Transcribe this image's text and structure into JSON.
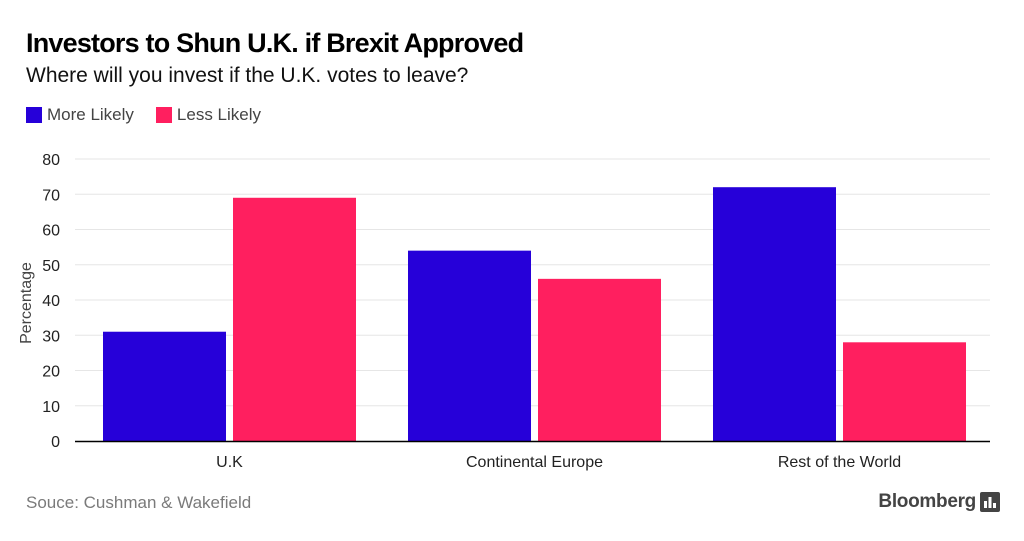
{
  "colors": {
    "more_likely": "#2600d9",
    "less_likely": "#ff1f5f",
    "grid": "#e6e6e6",
    "axis": "#000000",
    "text": "#222222"
  },
  "source": "Souce: Cushman & Wakefield",
  "brand": {
    "name": "Bloomberg",
    "icon": "bar-chart-icon"
  },
  "chart_data": {
    "type": "bar",
    "title": "Investors to Shun U.K. if Brexit Approved",
    "subtitle": "Where will you invest if the U.K. votes to leave?",
    "categories": [
      "U.K",
      "Continental Europe",
      "Rest of the World"
    ],
    "series": [
      {
        "name": "More Likely",
        "color": "#2600d9",
        "values": [
          31,
          54,
          72
        ]
      },
      {
        "name": "Less Likely",
        "color": "#ff1f5f",
        "values": [
          69,
          46,
          28
        ]
      }
    ],
    "xlabel": "",
    "ylabel": "Percentage",
    "ylim": [
      0,
      80
    ],
    "yticks": [
      0,
      10,
      20,
      30,
      40,
      50,
      60,
      70,
      80
    ],
    "grid": true,
    "legend": "top-left"
  }
}
